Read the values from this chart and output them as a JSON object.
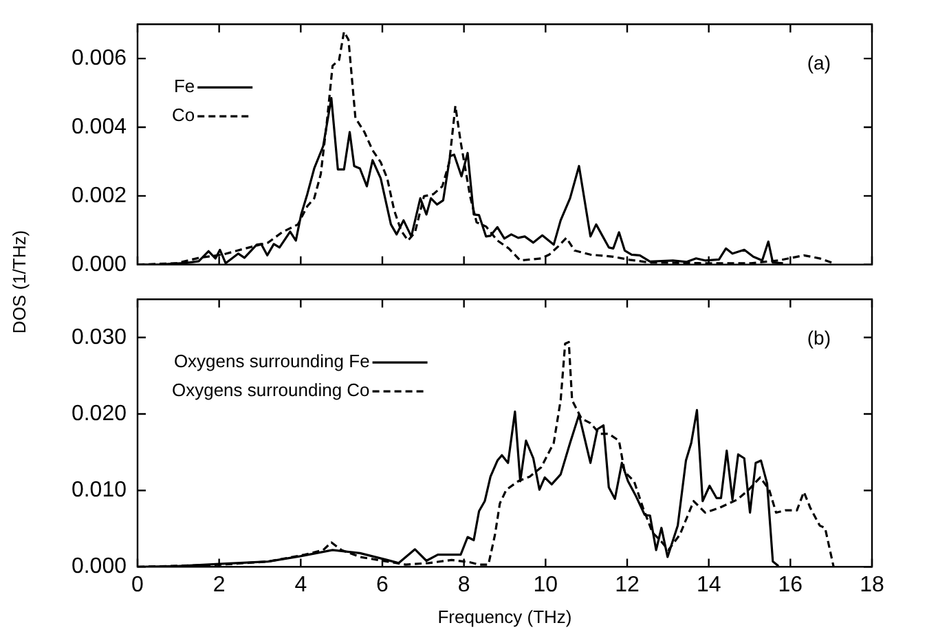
{
  "chart_data": [
    {
      "type": "line",
      "ylabel": "DOS (1/THz)",
      "annotations": [
        "(a)"
      ],
      "legend": "top left",
      "tick_labels": "y",
      "xlim": [
        0,
        18
      ],
      "xticks": [
        0,
        2,
        4,
        6,
        8,
        10,
        12,
        14,
        16,
        18
      ],
      "ylim": [
        0,
        0.007
      ],
      "yticks": [
        {
          "value": 0,
          "label": "0.000"
        },
        {
          "value": 0.002,
          "label": "0.002"
        },
        {
          "value": 0.004,
          "label": "0.004"
        },
        {
          "value": 0.006,
          "label": "0.006"
        }
      ],
      "series": [
        {
          "name": "Fe",
          "color": "#000000",
          "line_style": "solid",
          "x": [
            0,
            0.5,
            1.2,
            1.5,
            1.74,
            1.91,
            2.02,
            2.16,
            2.47,
            2.62,
            2.92,
            3.03,
            3.18,
            3.34,
            3.48,
            3.74,
            3.88,
            4.01,
            4.16,
            4.33,
            4.55,
            4.75,
            4.91,
            5.06,
            5.2,
            5.31,
            5.45,
            5.62,
            5.76,
            5.96,
            6.21,
            6.35,
            6.52,
            6.71,
            6.93,
            7.08,
            7.19,
            7.34,
            7.49,
            7.66,
            7.76,
            7.94,
            8.09,
            8.24,
            8.37,
            8.54,
            8.65,
            8.82,
            8.99,
            9.16,
            9.33,
            9.49,
            9.7,
            9.92,
            10.2,
            10.37,
            10.6,
            10.82,
            11.1,
            11.24,
            11.55,
            11.66,
            11.8,
            11.94,
            12.11,
            12.31,
            12.56,
            13.12,
            13.46,
            13.69,
            13.91,
            14.25,
            14.42,
            14.58,
            14.87,
            15.09,
            15.31,
            15.46,
            15.57,
            15.82
          ],
          "values": [
            0,
            0,
            5e-05,
            0.0001,
            0.00039,
            0.00018,
            0.00043,
            4e-05,
            0.00032,
            0.0002,
            0.00058,
            0.0006,
            0.00027,
            0.0006,
            0.0005,
            0.00096,
            0.0007,
            0.00146,
            0.00205,
            0.0028,
            0.00345,
            0.00485,
            0.00277,
            0.00277,
            0.00386,
            0.00287,
            0.0028,
            0.00228,
            0.00304,
            0.00251,
            0.00117,
            0.00088,
            0.00129,
            0.00082,
            0.00193,
            0.00146,
            0.00193,
            0.00175,
            0.00187,
            0.00316,
            0.0032,
            0.00257,
            0.00325,
            0.00146,
            0.00144,
            0.00082,
            0.00084,
            0.00109,
            0.00076,
            0.00088,
            0.00078,
            0.00082,
            0.00064,
            0.00085,
            0.00058,
            0.00129,
            0.00193,
            0.00287,
            0.00082,
            0.00117,
            0.0005,
            0.00047,
            0.00094,
            0.00041,
            0.00029,
            0.00027,
            9e-05,
            0.00012,
            8e-05,
            0.00018,
            0.00012,
            0.00015,
            0.00047,
            0.00032,
            0.00043,
            0.00023,
            0.00012,
            0.00067,
            6e-05,
            4e-05
          ]
        },
        {
          "name": "Co",
          "color": "#000000",
          "line_style": "dashed",
          "x": [
            0,
            0.96,
            1.52,
            2.08,
            2.64,
            3.2,
            3.54,
            3.93,
            4.16,
            4.33,
            4.49,
            4.64,
            4.78,
            4.94,
            5.06,
            5.17,
            5.34,
            5.56,
            5.76,
            5.96,
            6.12,
            6.29,
            6.46,
            6.63,
            6.8,
            7.02,
            7.25,
            7.47,
            7.64,
            7.79,
            7.92,
            8.15,
            8.31,
            8.54,
            8.82,
            9.1,
            9.38,
            9.89,
            10.09,
            10.31,
            10.51,
            10.71,
            11.1,
            11.66,
            12.06,
            12.56,
            13.91,
            15.03,
            15.71,
            16.33,
            16.72,
            17.06
          ],
          "values": [
            0,
            4e-05,
            0.0002,
            0.00029,
            0.00047,
            0.00064,
            0.00094,
            0.00117,
            0.0017,
            0.00193,
            0.00263,
            0.00415,
            0.00579,
            0.00596,
            0.00678,
            0.00655,
            0.00427,
            0.00386,
            0.00333,
            0.00298,
            0.00251,
            0.00158,
            0.00099,
            0.0007,
            0.00094,
            0.00199,
            0.00205,
            0.00228,
            0.00298,
            0.00462,
            0.00357,
            0.00199,
            0.00123,
            0.00111,
            0.0007,
            0.00047,
            0.00012,
            0.00018,
            0.00029,
            0.00053,
            0.00078,
            0.00041,
            0.00029,
            0.00023,
            0.00014,
            6e-05,
            4e-05,
            4e-05,
            0.00012,
            0.00027,
            0.00018,
            4e-05
          ]
        }
      ]
    },
    {
      "type": "line",
      "xlabel": "Frequency (THz)",
      "annotations": [
        "(b)"
      ],
      "legend": "top left",
      "xlim": [
        0,
        18
      ],
      "xticks": [
        0,
        2,
        4,
        6,
        8,
        10,
        12,
        14,
        16,
        18
      ],
      "ylim": [
        0,
        0.035
      ],
      "yticks": [
        {
          "value": 0,
          "label": "0.000"
        },
        {
          "value": 0.01,
          "label": "0.010"
        },
        {
          "value": 0.02,
          "label": "0.020"
        },
        {
          "value": 0.03,
          "label": "0.030"
        }
      ],
      "series": [
        {
          "name": "Oxygens surrounding Fe",
          "color": "#000000",
          "line_style": "solid",
          "x": [
            0,
            0.96,
            2.08,
            3.2,
            3.99,
            4.78,
            5.45,
            6.12,
            6.4,
            6.8,
            7.08,
            7.36,
            7.58,
            7.92,
            8.09,
            8.24,
            8.37,
            8.51,
            8.65,
            8.82,
            8.93,
            9.08,
            9.25,
            9.38,
            9.52,
            9.7,
            9.85,
            9.98,
            10.15,
            10.37,
            10.6,
            10.82,
            11.1,
            11.27,
            11.42,
            11.55,
            11.7,
            11.87,
            12.02,
            12.22,
            12.43,
            12.56,
            12.71,
            12.84,
            12.99,
            13.24,
            13.44,
            13.57,
            13.71,
            13.85,
            14.02,
            14.19,
            14.3,
            14.44,
            14.58,
            14.72,
            14.87,
            15.01,
            15.15,
            15.28,
            15.43,
            15.57,
            15.71
          ],
          "values": [
            0,
            0.0001,
            0.0004,
            0.0007,
            0.0014,
            0.0022,
            0.0018,
            0.0009,
            0.0005,
            0.0023,
            0.0008,
            0.0016,
            0.0016,
            0.0016,
            0.0039,
            0.0035,
            0.0073,
            0.0086,
            0.0118,
            0.0139,
            0.0146,
            0.0136,
            0.0203,
            0.0112,
            0.0165,
            0.0142,
            0.0101,
            0.0117,
            0.0108,
            0.0121,
            0.0162,
            0.0199,
            0.0136,
            0.018,
            0.0185,
            0.0104,
            0.0089,
            0.0136,
            0.0112,
            0.0092,
            0.0068,
            0.0067,
            0.0022,
            0.0051,
            0.0013,
            0.0054,
            0.0139,
            0.0162,
            0.0205,
            0.0086,
            0.0106,
            0.009,
            0.009,
            0.0152,
            0.0088,
            0.0147,
            0.0142,
            0.0071,
            0.0136,
            0.0139,
            0.0109,
            0.0007,
            0.0001
          ]
        },
        {
          "name": "Oxygens surrounding Co",
          "color": "#000000",
          "line_style": "dashed",
          "x": [
            0,
            2.08,
            3.2,
            4.1,
            4.55,
            4.75,
            5.0,
            5.45,
            6.12,
            6.57,
            7.13,
            7.7,
            8.15,
            8.37,
            8.6,
            8.76,
            8.88,
            9.04,
            9.33,
            9.61,
            9.89,
            10.2,
            10.37,
            10.48,
            10.57,
            10.65,
            10.88,
            11.1,
            11.33,
            11.55,
            11.8,
            11.94,
            12.17,
            12.39,
            12.62,
            12.84,
            13.01,
            13.29,
            13.63,
            13.91,
            14.25,
            14.7,
            14.98,
            15.26,
            15.48,
            15.65,
            15.88,
            16.16,
            16.33,
            16.49,
            16.72,
            16.85,
            17.06
          ],
          "values": [
            0,
            0.0003,
            0.0007,
            0.0016,
            0.0022,
            0.0032,
            0.0022,
            0.0013,
            0.0007,
            0.0003,
            0.0005,
            0.0009,
            0.0006,
            0.0003,
            0.0003,
            0.0042,
            0.0083,
            0.0101,
            0.0112,
            0.0118,
            0.013,
            0.0162,
            0.0218,
            0.0292,
            0.0294,
            0.0218,
            0.0194,
            0.0188,
            0.0174,
            0.0174,
            0.0165,
            0.0124,
            0.0112,
            0.0077,
            0.0045,
            0.0033,
            0.0022,
            0.0042,
            0.0086,
            0.0071,
            0.0077,
            0.0088,
            0.0101,
            0.0117,
            0.0101,
            0.0071,
            0.0074,
            0.0074,
            0.0098,
            0.0077,
            0.0054,
            0.0051,
            0
          ]
        }
      ]
    }
  ]
}
